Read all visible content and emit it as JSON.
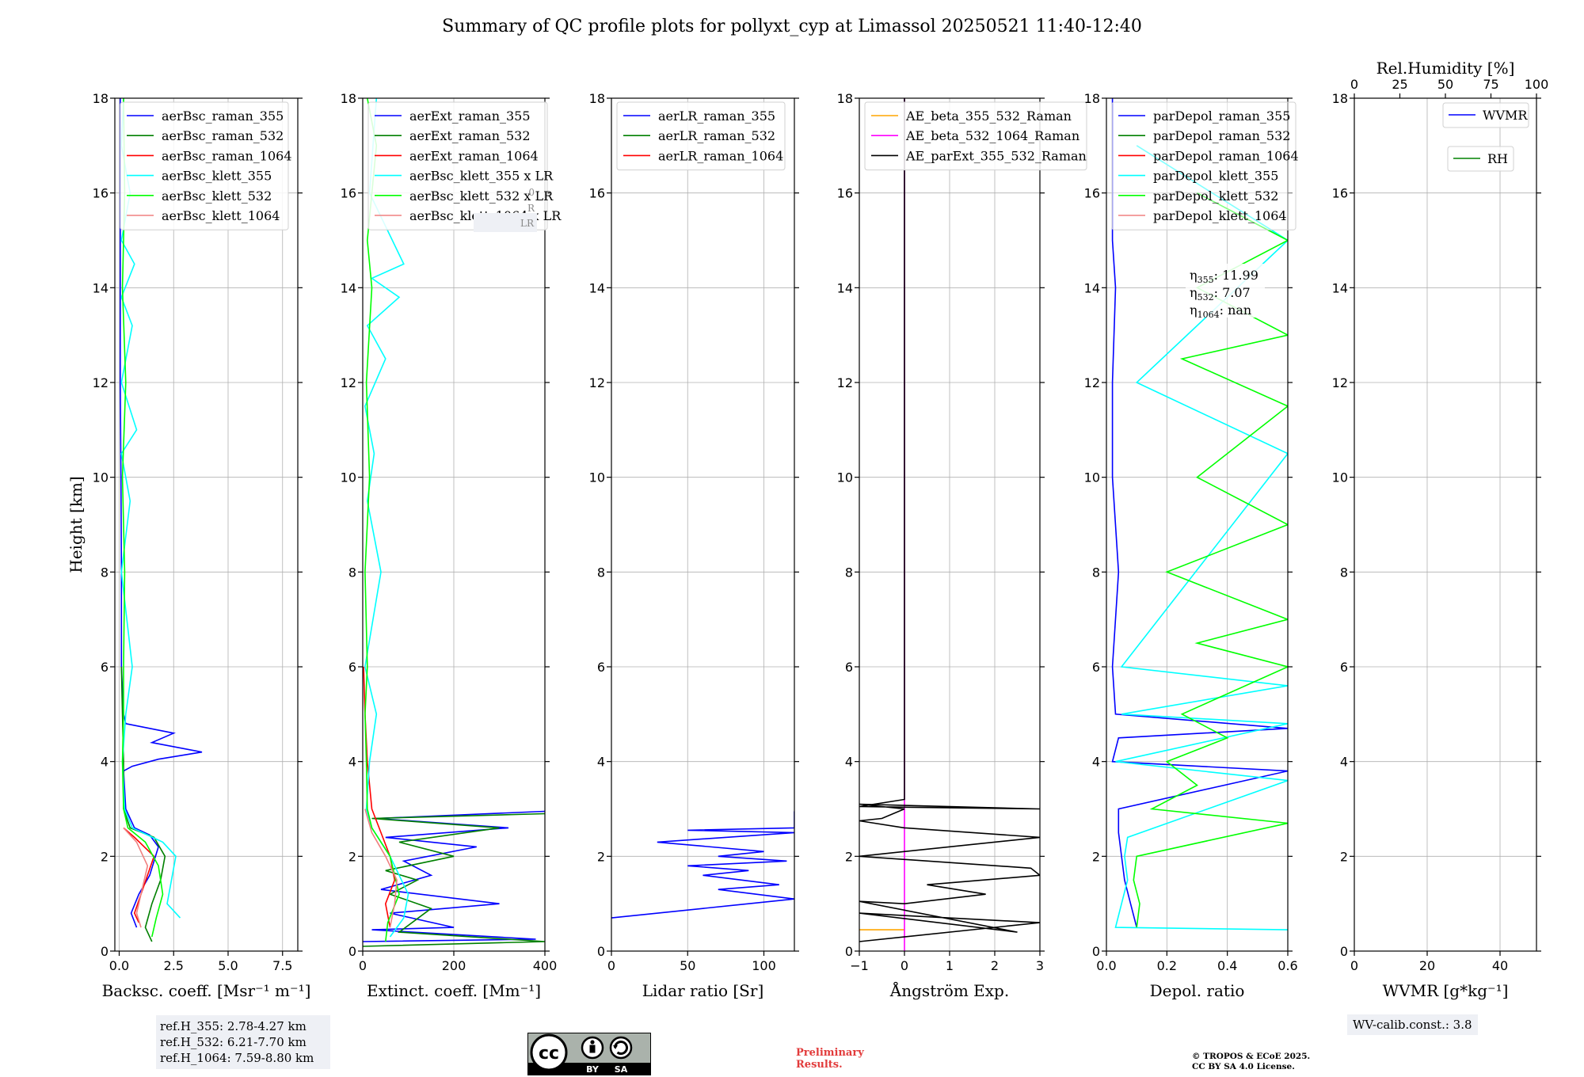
{
  "title": "Summary of QC profile plots for pollyxt_cyp at Limassol 20250521 11:40-12:40",
  "chart_data": [
    {
      "type": "line",
      "name": "backscatter",
      "xlabel": "Backsc. coeff. [Msr⁻¹ m⁻¹]",
      "ylabel": "Height [km]",
      "xlim": [
        -0.2,
        8.2
      ],
      "ylim": [
        0,
        18
      ],
      "xticks": [
        0,
        2.5,
        5.0,
        7.5
      ],
      "xticklabels": [
        "0.0",
        "2.5",
        "5.0",
        "7.5"
      ],
      "yticks": [
        0,
        2,
        4,
        6,
        8,
        10,
        12,
        14,
        16,
        18
      ],
      "legend": [
        "aerBsc_raman_355",
        "aerBsc_raman_532",
        "aerBsc_raman_1064",
        "aerBsc_klett_355",
        "aerBsc_klett_532",
        "aerBsc_klett_1064"
      ],
      "series": [
        {
          "name": "aerBsc_raman_355",
          "color": "#0000ff",
          "x": [
            0.8,
            0.55,
            0.9,
            1.4,
            1.6,
            1.8,
            1.4,
            0.7,
            0.3,
            0.2,
            0.6,
            1.8,
            3.8,
            1.5,
            2.5,
            0.3,
            0.2,
            0.1,
            0.1,
            0.08,
            0.05,
            0.05,
            0.05,
            0.05,
            0.05
          ],
          "y": [
            0.5,
            0.8,
            1.2,
            1.6,
            1.9,
            2.2,
            2.45,
            2.6,
            3.0,
            3.8,
            3.9,
            4.05,
            4.2,
            4.4,
            4.6,
            4.8,
            5.0,
            6.0,
            8.0,
            10.0,
            12.0,
            14.0,
            16.0,
            17.5,
            18.0
          ]
        },
        {
          "name": "aerBsc_raman_532",
          "color": "#008000",
          "x": [
            1.5,
            1.2,
            1.5,
            1.9,
            2.1,
            1.6,
            0.5,
            0.2,
            0.2,
            0.15,
            0.1
          ],
          "y": [
            0.2,
            0.5,
            1.0,
            1.5,
            2.0,
            2.4,
            2.6,
            3.0,
            4.0,
            5.0,
            6.0
          ]
        },
        {
          "name": "aerBsc_raman_1064",
          "color": "#ff0000",
          "x": [
            0.9,
            0.7,
            1.0,
            1.6,
            0.7,
            0.2
          ],
          "y": [
            0.6,
            0.8,
            1.2,
            2.0,
            2.4,
            2.6
          ]
        },
        {
          "name": "aerBsc_klett_355",
          "color": "#00ffff",
          "x": [
            2.8,
            2.2,
            2.4,
            2.6,
            2.0,
            0.6,
            0.25,
            0.15,
            0.3,
            0.6,
            0.1,
            0.5,
            0.1,
            0.8,
            0.1,
            0.6,
            0.1,
            0.7,
            0.1,
            0.5,
            0.1,
            0.2
          ],
          "y": [
            0.7,
            1.0,
            1.5,
            2.0,
            2.3,
            2.6,
            3.0,
            4.0,
            5.0,
            6.0,
            8.0,
            9.5,
            10.5,
            11.0,
            12.0,
            13.2,
            13.8,
            14.5,
            15.0,
            16.0,
            17.0,
            18.0
          ]
        },
        {
          "name": "aerBsc_klett_532",
          "color": "#00ff00",
          "x": [
            1.5,
            1.7,
            2.0,
            1.8,
            1.2,
            0.4,
            0.2,
            0.15,
            0.2,
            0.2,
            0.25,
            0.15,
            0.3,
            0.15,
            0.25,
            0.2
          ],
          "y": [
            0.3,
            0.7,
            1.2,
            1.8,
            2.3,
            2.6,
            3.0,
            4.0,
            5.0,
            6.0,
            8.0,
            10.0,
            12.0,
            14.0,
            16.0,
            18.0
          ]
        },
        {
          "name": "aerBsc_klett_1064",
          "color": "#f08080",
          "x": [
            1.0,
            0.8,
            1.0,
            1.3,
            0.8,
            0.2
          ],
          "y": [
            0.5,
            0.8,
            1.2,
            1.8,
            2.3,
            2.6
          ]
        }
      ]
    },
    {
      "type": "line",
      "name": "extinction",
      "xlabel": "Extinct. coeff. [Mm⁻¹]",
      "xlim": [
        0,
        400
      ],
      "ylim": [
        0,
        18
      ],
      "xticks": [
        0,
        200,
        400
      ],
      "xticklabels": [
        "0",
        "200",
        "400"
      ],
      "yticks": [
        0,
        2,
        4,
        6,
        8,
        10,
        12,
        14,
        16,
        18
      ],
      "legend": [
        "aerExt_raman_355",
        "aerExt_raman_532",
        "aerExt_raman_1064",
        "aerBsc_klett_355 x LR",
        "aerBsc_klett_532 x LR",
        "aerBsc_klett_1064 x LR"
      ],
      "hidden_label_fragments": [
        "0",
        "R",
        "LR"
      ],
      "series": [
        {
          "name": "aerExt_raman_355",
          "color": "#0000ff",
          "x": [
            0,
            380,
            20,
            200,
            60,
            300,
            40,
            150,
            90,
            250,
            50,
            320,
            30,
            400
          ],
          "y": [
            0.2,
            0.25,
            0.45,
            0.5,
            0.8,
            1.0,
            1.3,
            1.6,
            1.9,
            2.2,
            2.4,
            2.6,
            2.8,
            2.95
          ]
        },
        {
          "name": "aerExt_raman_532",
          "color": "#008000",
          "x": [
            0,
            400,
            80,
            150,
            60,
            120,
            50,
            200,
            80,
            300,
            20,
            400
          ],
          "y": [
            0.1,
            0.2,
            0.4,
            0.9,
            1.2,
            1.5,
            1.7,
            2.0,
            2.3,
            2.6,
            2.8,
            2.9
          ]
        },
        {
          "name": "aerExt_raman_1064",
          "color": "#ff0000",
          "x": [
            60,
            50,
            70,
            60,
            40,
            20,
            10,
            5,
            2
          ],
          "y": [
            0.5,
            1.0,
            1.5,
            2.0,
            2.5,
            3.0,
            4.0,
            5.0,
            6.0
          ]
        },
        {
          "name": "aerBsc_klett_355 x LR",
          "color": "#00ffff",
          "x": [
            60,
            90,
            100,
            60,
            20,
            8,
            15,
            30,
            5,
            40,
            10,
            25,
            5,
            50,
            10,
            80,
            20,
            90,
            15,
            30
          ],
          "y": [
            0.3,
            0.7,
            1.2,
            2.0,
            2.6,
            3.0,
            4.0,
            5.0,
            6.0,
            8.0,
            9.5,
            10.5,
            11.5,
            12.5,
            13.2,
            13.8,
            14.2,
            14.5,
            16.0,
            18.0
          ]
        },
        {
          "name": "aerBsc_klett_532 x LR",
          "color": "#00ff00",
          "x": [
            50,
            55,
            80,
            60,
            20,
            10,
            8,
            5,
            10,
            5,
            15,
            8,
            20,
            10,
            30,
            10
          ],
          "y": [
            0.2,
            0.6,
            1.2,
            2.0,
            2.6,
            3.0,
            4.0,
            5.0,
            6.0,
            8.0,
            10.0,
            12.0,
            14.0,
            15.0,
            17.0,
            18.0
          ]
        },
        {
          "name": "aerBsc_klett_1064 x LR",
          "color": "#f08080",
          "x": [
            60,
            70,
            75,
            50,
            20,
            5
          ],
          "y": [
            0.5,
            1.0,
            1.5,
            2.0,
            2.5,
            3.0
          ]
        }
      ]
    },
    {
      "type": "line",
      "name": "lidar_ratio",
      "xlabel": "Lidar ratio [Sr]",
      "xlim": [
        0,
        120
      ],
      "ylim": [
        0,
        18
      ],
      "xticks": [
        0,
        50,
        100
      ],
      "xticklabels": [
        "0",
        "50",
        "100"
      ],
      "yticks": [
        0,
        2,
        4,
        6,
        8,
        10,
        12,
        14,
        16,
        18
      ],
      "legend": [
        "aerLR_raman_355",
        "aerLR_raman_532",
        "aerLR_raman_1064"
      ],
      "series": [
        {
          "name": "aerLR_raman_355",
          "color": "#0000ff",
          "x": [
            0,
            120,
            70,
            110,
            60,
            90,
            50,
            115,
            70,
            100,
            30,
            120,
            50,
            120,
            120
          ],
          "y": [
            0.7,
            1.1,
            1.3,
            1.4,
            1.6,
            1.7,
            1.8,
            1.9,
            2.0,
            2.1,
            2.3,
            2.5,
            2.55,
            2.6,
            2.95
          ]
        }
      ]
    },
    {
      "type": "line",
      "name": "angstrom",
      "xlabel": "Ångström Exp.",
      "xlim": [
        -1,
        3
      ],
      "ylim": [
        0,
        18
      ],
      "xticks": [
        -1,
        0,
        1,
        2,
        3
      ],
      "xticklabels": [
        "−1",
        "0",
        "1",
        "2",
        "3"
      ],
      "yticks": [
        0,
        2,
        4,
        6,
        8,
        10,
        12,
        14,
        16,
        18
      ],
      "legend": [
        "AE_beta_355_532_Raman",
        "AE_beta_532_1064_Raman",
        "AE_parExt_355_532_Raman"
      ],
      "series": [
        {
          "name": "AE_beta_355_532_Raman",
          "color": "#ffa500",
          "x": [
            -1,
            0.0
          ],
          "y": [
            0.45,
            0.45
          ]
        },
        {
          "name": "AE_beta_532_1064_Raman",
          "color": "#ff00ff",
          "x": [
            0.0,
            0.0
          ],
          "y": [
            0.0,
            18.0
          ]
        },
        {
          "name": "AE_parExt_355_532_Raman",
          "color": "#000000",
          "x": [
            -1,
            3,
            -1,
            2.5,
            -1,
            0.0,
            1.8,
            0.5,
            3,
            2.8,
            -1,
            3,
            0.0,
            -1,
            -0.5,
            0.0,
            -1,
            3,
            -1,
            0.0,
            0.0
          ],
          "y": [
            0.2,
            0.6,
            0.8,
            0.4,
            1.05,
            1.0,
            1.2,
            1.4,
            1.6,
            1.75,
            2.0,
            2.4,
            2.6,
            2.75,
            2.8,
            3.0,
            3.1,
            3.0,
            3.05,
            3.2,
            18.0
          ]
        }
      ]
    },
    {
      "type": "line",
      "name": "depolarization",
      "xlabel": "Depol. ratio",
      "xlim": [
        0,
        0.6
      ],
      "ylim": [
        0,
        18
      ],
      "xticks": [
        0,
        0.2,
        0.4,
        0.6
      ],
      "xticklabels": [
        "0.0",
        "0.2",
        "0.4",
        "0.6"
      ],
      "yticks": [
        0,
        2,
        4,
        6,
        8,
        10,
        12,
        14,
        16,
        18
      ],
      "legend": [
        "parDepol_raman_355",
        "parDepol_raman_532",
        "parDepol_raman_1064",
        "parDepol_klett_355",
        "parDepol_klett_532",
        "parDepol_klett_1064"
      ],
      "annotations": [
        {
          "sym": "η",
          "sub": "355",
          "value": ": 11.99"
        },
        {
          "sym": "η",
          "sub": "532",
          "value": ": 7.07"
        },
        {
          "sym": "η",
          "sub": "1064",
          "value": ": nan"
        }
      ],
      "series": [
        {
          "name": "parDepol_raman_355",
          "color": "#0000ff",
          "x": [
            0.1,
            0.08,
            0.06,
            0.05,
            0.04,
            0.04,
            0.6,
            0.02,
            0.04,
            0.6,
            0.03,
            0.02,
            0.04,
            0.02,
            0.02,
            0.03,
            0.02,
            0.02,
            0.02,
            0.02
          ],
          "y": [
            0.5,
            1.0,
            1.5,
            2.0,
            2.5,
            3.0,
            3.8,
            4.0,
            4.5,
            4.7,
            5.0,
            6.0,
            8.0,
            10.0,
            12.0,
            14.0,
            15.0,
            16.0,
            17.0,
            18.0
          ]
        },
        {
          "name": "parDepol_klett_355",
          "color": "#00ffff",
          "x": [
            0.6,
            0.03,
            0.05,
            0.07,
            0.06,
            0.07,
            0.6,
            0.03,
            0.6,
            0.05,
            0.6,
            0.05,
            0.6,
            0.1,
            0.6,
            0.1
          ],
          "y": [
            0.45,
            0.5,
            1.0,
            1.5,
            2.0,
            2.4,
            3.6,
            4.0,
            4.8,
            5.0,
            5.6,
            6.0,
            10.5,
            12.0,
            15.0,
            17.0
          ]
        },
        {
          "name": "parDepol_klett_532",
          "color": "#00ff00",
          "x": [
            0.1,
            0.11,
            0.09,
            0.1,
            0.6,
            0.15,
            0.3,
            0.2,
            0.4,
            0.25,
            0.6,
            0.3,
            0.6,
            0.2,
            0.6,
            0.3,
            0.6,
            0.25,
            0.6,
            0.3,
            0.6,
            0.3
          ],
          "y": [
            0.5,
            1.0,
            1.5,
            2.0,
            2.7,
            3.0,
            3.5,
            4.0,
            4.5,
            5.0,
            6.0,
            6.5,
            7.0,
            8.0,
            9.0,
            10.0,
            11.5,
            12.5,
            13.0,
            14.0,
            15.0,
            16.0
          ]
        }
      ]
    },
    {
      "type": "line",
      "name": "wvmr",
      "xlabel": "WVMR [g*kg⁻¹]",
      "xlim": [
        0,
        50
      ],
      "ylim": [
        0,
        18
      ],
      "xticks": [
        0,
        20,
        40
      ],
      "xticklabels": [
        "0",
        "20",
        "40"
      ],
      "x2label": "Rel.Humidity [%]",
      "x2lim": [
        0,
        100
      ],
      "x2ticks": [
        0,
        25,
        50,
        75,
        100
      ],
      "x2ticklabels": [
        "0",
        "25",
        "50",
        "75",
        "100"
      ],
      "yticks": [
        0,
        2,
        4,
        6,
        8,
        10,
        12,
        14,
        16,
        18
      ],
      "legend": [
        "WVMR",
        "RH"
      ],
      "series": []
    }
  ],
  "footer": {
    "ref_heights": [
      "ref.H_355: 2.78-4.27 km",
      "ref.H_532: 6.21-7.70 km",
      "ref.H_1064: 7.59-8.80 km"
    ],
    "wv_calib": "WV-calib.const.: 3.8",
    "license_logo": {
      "icon": "cc-by-sa-icon",
      "labels": [
        "BY",
        "SA"
      ]
    },
    "preliminary": [
      "Preliminary",
      "Results."
    ],
    "copyright": [
      "© TROPOS & ECoE 2025.",
      "CC BY SA 4.0 License."
    ]
  }
}
